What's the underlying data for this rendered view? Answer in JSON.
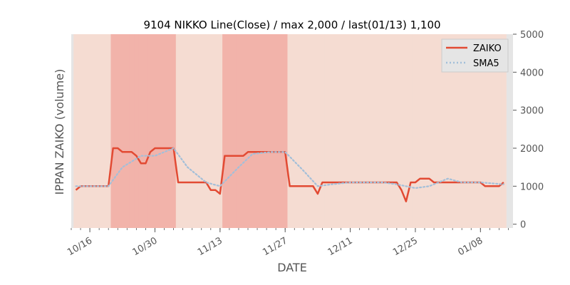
{
  "chart_data": {
    "type": "line",
    "title": "9104 NIKKO Line(Close) / max 2,000 / last(01/13) 1,100",
    "xlabel": "DATE",
    "ylabel": "IPPAN ZAIKO (volume)",
    "ylim": [
      -100,
      5000
    ],
    "yticks": [
      0,
      1000,
      2000,
      3000,
      4000,
      5000
    ],
    "ytick_labels": [
      "0",
      "1000",
      "2000",
      "3000",
      "4000",
      "5000"
    ],
    "y_axis_side": "right",
    "xlim": [
      "10/12",
      "01/15"
    ],
    "xticks": [
      "10/16",
      "10/30",
      "11/13",
      "11/27",
      "12/11",
      "12/25",
      "01/08"
    ],
    "grid": false,
    "legend_position": "top-right",
    "colors": {
      "zaiko": "#e24a33",
      "sma": "#a3bfd9",
      "plot_bg": "#e5e5e5",
      "band_light": "#f5dcd2",
      "band_dark": "#f2b3aa"
    },
    "series": [
      {
        "name": "ZAIKO",
        "style": "solid",
        "x": [
          "10/13",
          "10/14",
          "10/15",
          "10/16",
          "10/17",
          "10/18",
          "10/19",
          "10/20",
          "10/21",
          "10/22",
          "10/23",
          "10/24",
          "10/25",
          "10/26",
          "10/27",
          "10/28",
          "10/29",
          "10/30",
          "10/31",
          "11/01",
          "11/02",
          "11/03",
          "11/04",
          "11/05",
          "11/06",
          "11/07",
          "11/08",
          "11/09",
          "11/10",
          "11/11",
          "11/12",
          "11/13",
          "11/14",
          "11/15",
          "11/16",
          "11/17",
          "11/18",
          "11/19",
          "11/20",
          "11/21",
          "11/22",
          "11/23",
          "11/24",
          "11/25",
          "11/26",
          "11/27",
          "11/28",
          "11/29",
          "11/30",
          "12/01",
          "12/02",
          "12/03",
          "12/04",
          "12/05",
          "12/06",
          "12/07",
          "12/08",
          "12/09",
          "12/10",
          "12/11",
          "12/12",
          "12/13",
          "12/14",
          "12/15",
          "12/16",
          "12/17",
          "12/18",
          "12/19",
          "12/20",
          "12/21",
          "12/22",
          "12/23",
          "12/24",
          "12/25",
          "12/26",
          "12/27",
          "12/28",
          "12/29",
          "12/30",
          "12/31",
          "01/01",
          "01/02",
          "01/03",
          "01/04",
          "01/05",
          "01/06",
          "01/07",
          "01/08",
          "01/09",
          "01/10",
          "01/11",
          "01/12",
          "01/13"
        ],
        "values": [
          900,
          1000,
          1000,
          1000,
          1000,
          1000,
          1000,
          1000,
          2000,
          2000,
          1900,
          1900,
          1900,
          1800,
          1600,
          1600,
          1900,
          2000,
          2000,
          2000,
          2000,
          2000,
          1100,
          1100,
          1100,
          1100,
          1100,
          1100,
          1100,
          900,
          900,
          800,
          1800,
          1800,
          1800,
          1800,
          1800,
          1900,
          1900,
          1900,
          1900,
          1900,
          1900,
          1900,
          1900,
          1900,
          1000,
          1000,
          1000,
          1000,
          1000,
          1000,
          800,
          1100,
          1100,
          1100,
          1100,
          1100,
          1100,
          1100,
          1100,
          1100,
          1100,
          1100,
          1100,
          1100,
          1100,
          1100,
          1100,
          1100,
          900,
          600,
          1100,
          1100,
          1200,
          1200,
          1200,
          1100,
          1100,
          1100,
          1100,
          1100,
          1100,
          1100,
          1100,
          1100,
          1100,
          1100,
          1000,
          1000,
          1000,
          1000,
          1100
        ]
      },
      {
        "name": "SMA5",
        "style": "dotted",
        "x": [
          "10/13",
          "10/17",
          "10/20",
          "10/23",
          "10/27",
          "10/30",
          "11/03",
          "11/06",
          "11/10",
          "11/13",
          "11/17",
          "11/20",
          "11/24",
          "11/27",
          "12/01",
          "12/04",
          "12/07",
          "12/11",
          "12/15",
          "12/18",
          "12/21",
          "12/25",
          "12/28",
          "01/01",
          "01/04",
          "01/08",
          "01/13"
        ],
        "values": [
          1000,
          1000,
          1000,
          1500,
          1800,
          1800,
          2000,
          1500,
          1100,
          1000,
          1500,
          1850,
          1900,
          1900,
          1400,
          1000,
          1050,
          1100,
          1100,
          1100,
          1050,
          950,
          1000,
          1200,
          1100,
          1100,
          1050
        ]
      }
    ]
  }
}
